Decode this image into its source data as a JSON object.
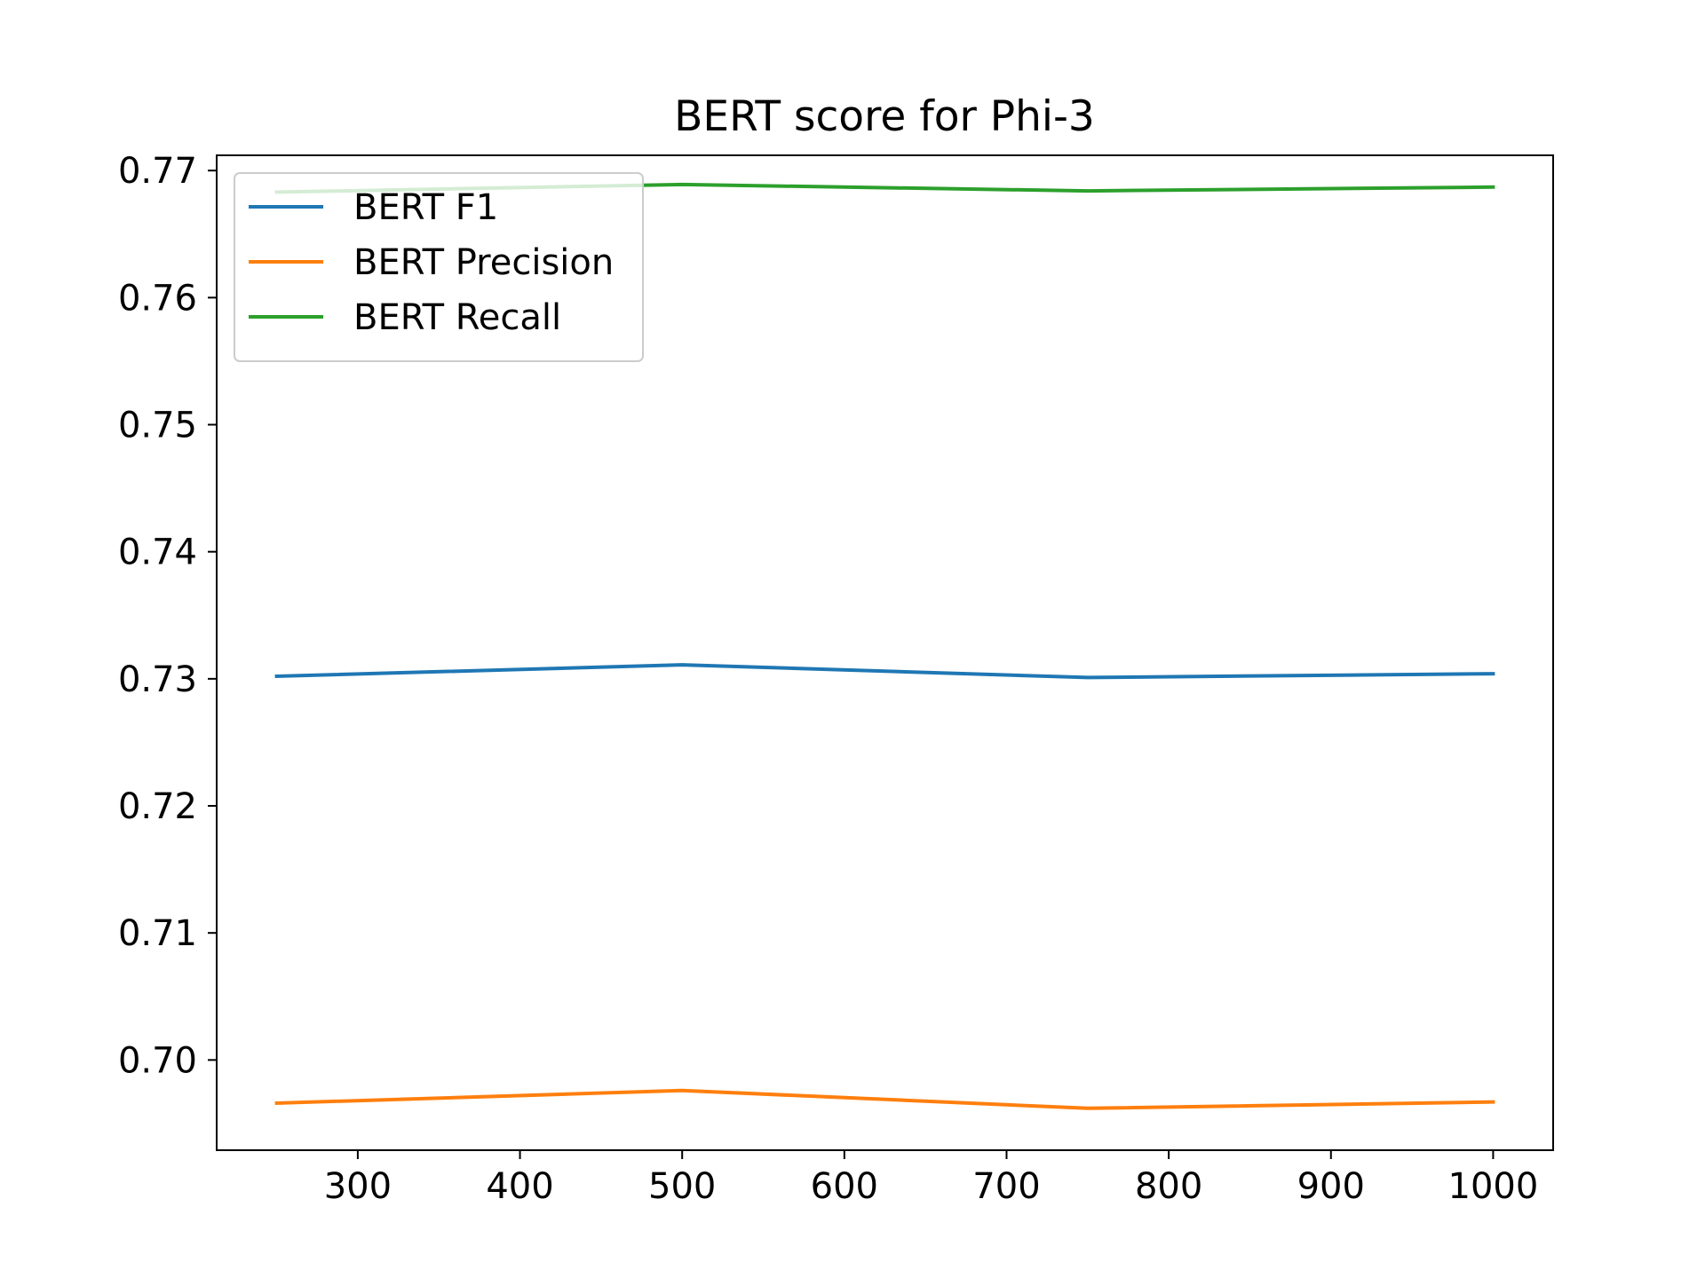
{
  "chart_data": {
    "type": "line",
    "title": "BERT score for Phi-3",
    "xlabel": "",
    "ylabel": "",
    "x": [
      250,
      500,
      750,
      1000
    ],
    "xlim": [
      213,
      1037
    ],
    "ylim": [
      0.6929,
      0.7712
    ],
    "xticks": [
      300,
      400,
      500,
      600,
      700,
      800,
      900,
      1000
    ],
    "yticks": [
      0.7,
      0.71,
      0.72,
      0.73,
      0.74,
      0.75,
      0.76,
      0.77
    ],
    "xtick_labels": [
      "300",
      "400",
      "500",
      "600",
      "700",
      "800",
      "900",
      "1000"
    ],
    "ytick_labels": [
      "0.70",
      "0.71",
      "0.72",
      "0.73",
      "0.74",
      "0.75",
      "0.76",
      "0.77"
    ],
    "grid": false,
    "legend_position": "upper-left",
    "series": [
      {
        "name": "BERT F1",
        "color": "#1f77b4",
        "values": [
          0.7302,
          0.7311,
          0.7301,
          0.7304
        ]
      },
      {
        "name": "BERT Precision",
        "color": "#ff7f0e",
        "values": [
          0.6966,
          0.6976,
          0.6962,
          0.6967
        ]
      },
      {
        "name": "BERT Recall",
        "color": "#2ca02c",
        "values": [
          0.7683,
          0.7689,
          0.7684,
          0.7687
        ]
      }
    ]
  }
}
